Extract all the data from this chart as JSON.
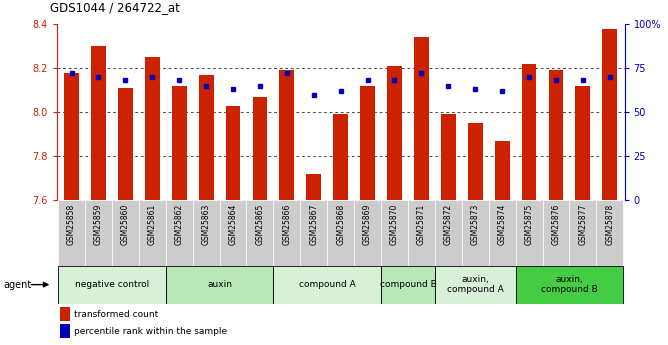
{
  "title": "GDS1044 / 264722_at",
  "samples": [
    "GSM25858",
    "GSM25859",
    "GSM25860",
    "GSM25861",
    "GSM25862",
    "GSM25863",
    "GSM25864",
    "GSM25865",
    "GSM25866",
    "GSM25867",
    "GSM25868",
    "GSM25869",
    "GSM25870",
    "GSM25871",
    "GSM25872",
    "GSM25873",
    "GSM25874",
    "GSM25875",
    "GSM25876",
    "GSM25877",
    "GSM25878"
  ],
  "transformed_count": [
    8.18,
    8.3,
    8.11,
    8.25,
    8.12,
    8.17,
    8.03,
    8.07,
    8.19,
    7.72,
    7.99,
    8.12,
    8.21,
    8.34,
    7.99,
    7.95,
    7.87,
    8.22,
    8.19,
    8.12,
    8.38
  ],
  "percentile_rank": [
    72,
    70,
    68,
    70,
    68,
    65,
    63,
    65,
    72,
    60,
    62,
    68,
    68,
    72,
    65,
    63,
    62,
    70,
    68,
    68,
    70
  ],
  "ylim_left": [
    7.6,
    8.4
  ],
  "ylim_right": [
    0,
    100
  ],
  "yticks_left": [
    7.6,
    7.8,
    8.0,
    8.2,
    8.4
  ],
  "yticks_right": [
    0,
    25,
    50,
    75,
    100
  ],
  "ytick_labels_right": [
    "0",
    "25",
    "50",
    "75",
    "100%"
  ],
  "bar_color": "#cc2200",
  "dot_color": "#0000bb",
  "agent_groups": [
    {
      "label": "negative control",
      "start": 0,
      "end": 4,
      "color": "#d8f0d8"
    },
    {
      "label": "auxin",
      "start": 4,
      "end": 8,
      "color": "#b8e8b8"
    },
    {
      "label": "compound A",
      "start": 8,
      "end": 12,
      "color": "#d8f0d8"
    },
    {
      "label": "compound B",
      "start": 12,
      "end": 14,
      "color": "#b8e8b8"
    },
    {
      "label": "auxin,\ncompound A",
      "start": 14,
      "end": 17,
      "color": "#d8f0d8"
    },
    {
      "label": "auxin,\ncompound B",
      "start": 17,
      "end": 21,
      "color": "#44cc44"
    }
  ],
  "legend_labels": [
    "transformed count",
    "percentile rank within the sample"
  ],
  "agent_label": "agent",
  "bar_width": 0.55,
  "baseline": 7.6,
  "gridline_vals": [
    7.8,
    8.0,
    8.2
  ],
  "xtick_label_color": "#888888",
  "xtick_box_color": "#cccccc"
}
